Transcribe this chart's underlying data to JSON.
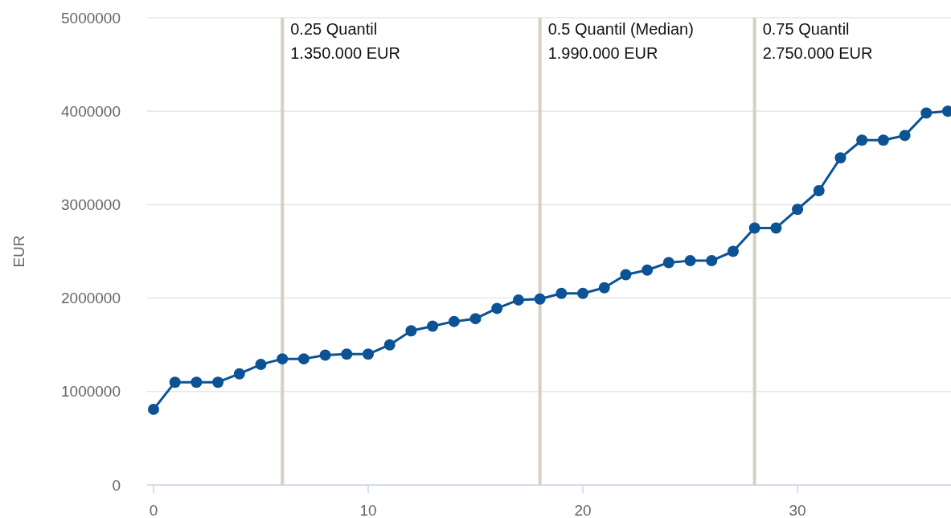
{
  "chart_data": {
    "type": "line",
    "ylabel": "EUR",
    "x": [
      0,
      1,
      2,
      3,
      4,
      5,
      6,
      7,
      8,
      9,
      10,
      11,
      12,
      13,
      14,
      15,
      16,
      17,
      18,
      19,
      20,
      21,
      22,
      23,
      24,
      25,
      26,
      27,
      28,
      29,
      30,
      31,
      32,
      33,
      34,
      35,
      36,
      37
    ],
    "series": [
      {
        "color": "#0b5394",
        "values": [
          810000,
          1100000,
          1100000,
          1100000,
          1190000,
          1290000,
          1350000,
          1350000,
          1390000,
          1400000,
          1400000,
          1500000,
          1650000,
          1700000,
          1750000,
          1780000,
          1890000,
          1980000,
          1990000,
          2050000,
          2050000,
          2110000,
          2250000,
          2300000,
          2380000,
          2400000,
          2400000,
          2500000,
          2750000,
          2750000,
          2950000,
          3150000,
          3500000,
          3690000,
          3690000,
          3740000,
          3980000,
          4000000
        ]
      }
    ],
    "xlim": [
      -0.3,
      37.15
    ],
    "xticks": [
      0,
      10,
      20,
      30
    ],
    "ylim": [
      0,
      5000000
    ],
    "yticks": [
      0,
      1000000,
      2000000,
      3000000,
      4000000,
      5000000
    ],
    "grid": "y",
    "marker": "circle",
    "line_style": "solid",
    "ref_lines": [
      {
        "axis": "x",
        "value": 6,
        "label": "0.25 Quantil\n1.350.000 EUR",
        "color": "#d6cfc4"
      },
      {
        "axis": "x",
        "value": 18,
        "label": "0.5 Quantil (Median)\n1.990.000 EUR",
        "color": "#d6cfc4"
      },
      {
        "axis": "x",
        "value": 28,
        "label": "0.75 Quantil\n2.750.000 EUR",
        "color": "#d6cfc4"
      }
    ]
  }
}
